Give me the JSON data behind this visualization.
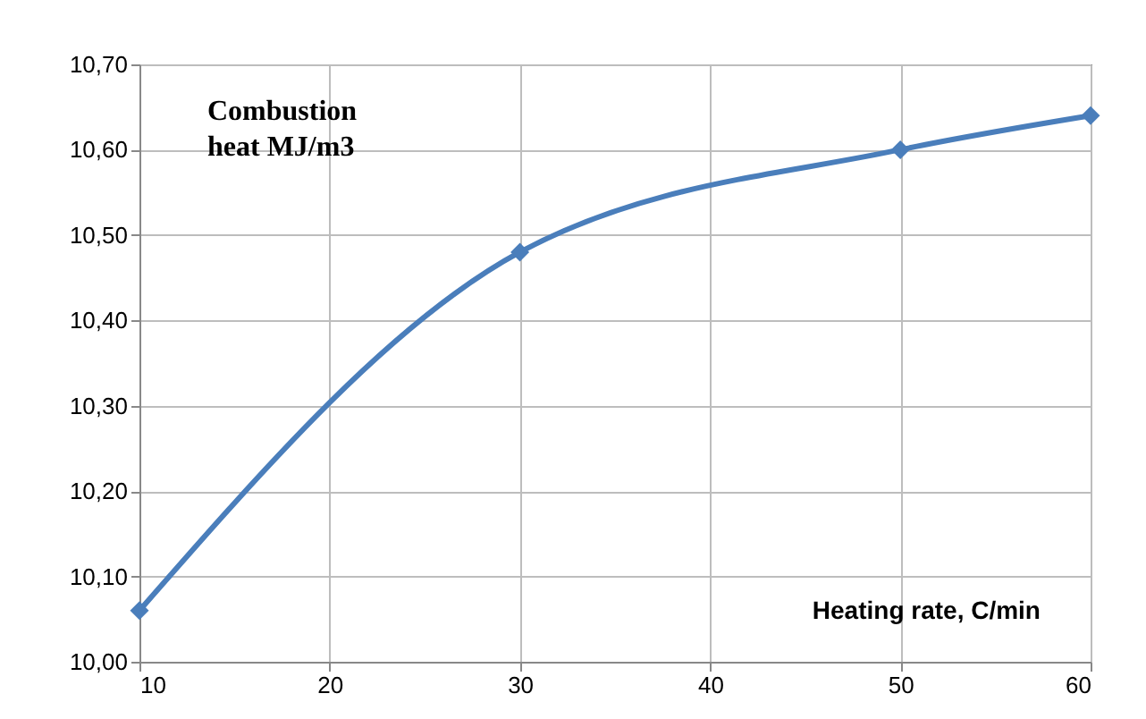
{
  "chart_data": {
    "type": "line",
    "xlabel": "Heating rate, C/min",
    "ylabel": "Combustion heat MJ/m3",
    "x": [
      10,
      30,
      50,
      60
    ],
    "series": [
      {
        "color": "#4a7ebb",
        "values": [
          10.06,
          10.48,
          10.6,
          10.64
        ]
      }
    ],
    "xlim": [
      10,
      60
    ],
    "xticks": [
      10,
      20,
      30,
      40,
      50,
      60
    ],
    "ylim": [
      10,
      10.7
    ],
    "yticks": [
      {
        "value": 10,
        "label": "10,00"
      },
      {
        "value": 10.1,
        "label": "10,10"
      },
      {
        "value": 10.2,
        "label": "10,20"
      },
      {
        "value": 10.3,
        "label": "10,30"
      },
      {
        "value": 10.4,
        "label": "10,40"
      },
      {
        "value": 10.5,
        "label": "10,50"
      },
      {
        "value": 10.6,
        "label": "10,60"
      },
      {
        "value": 10.7,
        "label": "10,70"
      }
    ],
    "grid": true,
    "marker": "diamond",
    "line_style": "solid"
  }
}
